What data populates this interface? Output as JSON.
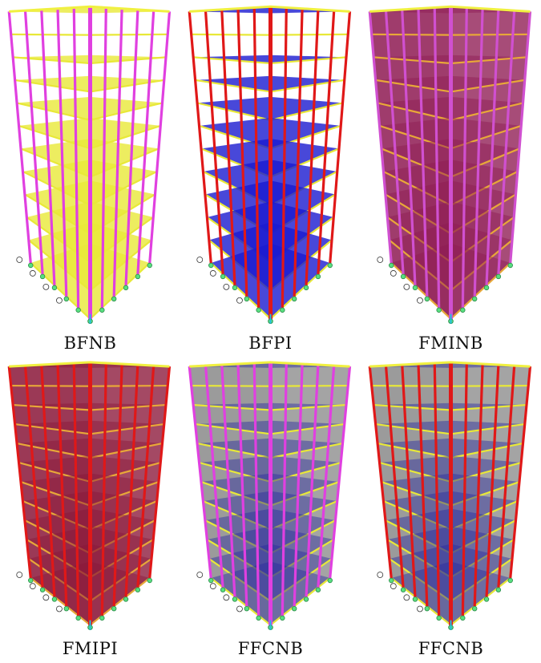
{
  "figure": {
    "panels": [
      {
        "id": "bfnb",
        "caption": "BFNB",
        "column": "#e040e0",
        "infill": "none",
        "slab": "#e8e838",
        "floor": "#e8e838",
        "beam": "#e8e838"
      },
      {
        "id": "bfpi",
        "caption": "BFPI",
        "column": "#e01818",
        "infill": "none",
        "slab": "#1a1ad0",
        "floor": "#1a1ad0",
        "beam": "#e8e838"
      },
      {
        "id": "fminb",
        "caption": "FMINB",
        "column": "#d050d0",
        "infill": "#8e1a52",
        "slab": "#8e1a52",
        "floor": "#8e1a52",
        "beam": "#e8a838"
      },
      {
        "id": "fmipi",
        "caption": "FMIPI",
        "column": "#e01818",
        "infill": "#8a1638",
        "slab": "#8a1638",
        "floor": "#8a1638",
        "beam": "#e8a838"
      },
      {
        "id": "ffcnb1",
        "caption": "FFCNB",
        "column": "#e040e0",
        "infill": "#8a8a8a",
        "slab": "#2a2aa0",
        "floor": "#2a2aa0",
        "beam": "#e8e838"
      },
      {
        "id": "ffcnb2",
        "caption": "FFCNB",
        "column": "#e01818",
        "infill": "#8a8a8a",
        "slab": "#2a2aa0",
        "floor": "#2a2aa0",
        "beam": "#e8e838"
      }
    ]
  }
}
